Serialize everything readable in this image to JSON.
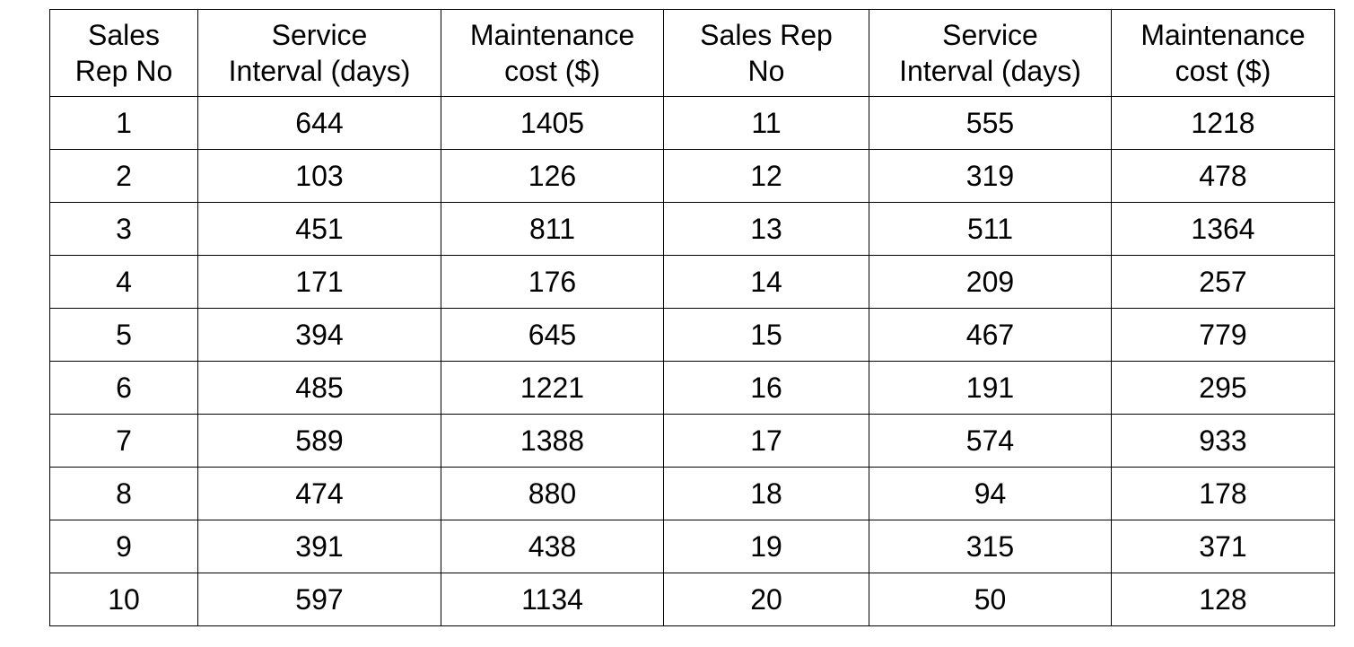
{
  "table": {
    "headers": [
      "Sales\nRep No",
      "Service\nInterval (days)",
      "Maintenance\ncost ($)",
      "Sales Rep\nNo",
      "Service\nInterval (days)",
      "Maintenance\ncost ($)"
    ],
    "rows": [
      [
        "1",
        "644",
        "1405",
        "11",
        "555",
        "1218"
      ],
      [
        "2",
        "103",
        "126",
        "12",
        "319",
        "478"
      ],
      [
        "3",
        "451",
        "811",
        "13",
        "511",
        "1364"
      ],
      [
        "4",
        "171",
        "176",
        "14",
        "209",
        "257"
      ],
      [
        "5",
        "394",
        "645",
        "15",
        "467",
        "779"
      ],
      [
        "6",
        "485",
        "1221",
        "16",
        "191",
        "295"
      ],
      [
        "7",
        "589",
        "1388",
        "17",
        "574",
        "933"
      ],
      [
        "8",
        "474",
        "880",
        "18",
        "94",
        "178"
      ],
      [
        "9",
        "391",
        "438",
        "19",
        "315",
        "371"
      ],
      [
        "10",
        "597",
        "1134",
        "20",
        "50",
        "128"
      ]
    ]
  }
}
